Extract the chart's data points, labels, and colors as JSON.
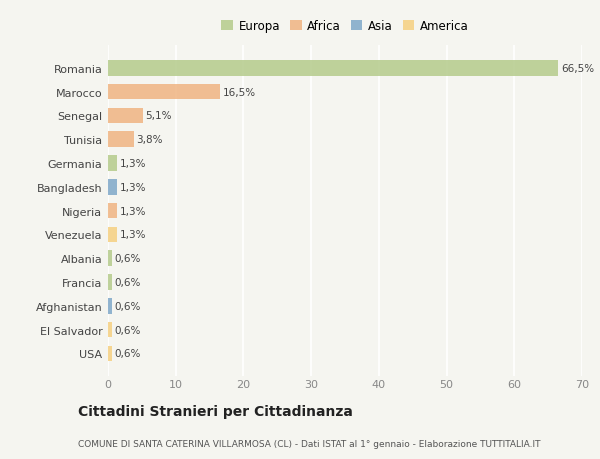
{
  "categories": [
    "Romania",
    "Marocco",
    "Senegal",
    "Tunisia",
    "Germania",
    "Bangladesh",
    "Nigeria",
    "Venezuela",
    "Albania",
    "Francia",
    "Afghanistan",
    "El Salvador",
    "USA"
  ],
  "values": [
    66.5,
    16.5,
    5.1,
    3.8,
    1.3,
    1.3,
    1.3,
    1.3,
    0.6,
    0.6,
    0.6,
    0.6,
    0.6
  ],
  "labels": [
    "66,5%",
    "16,5%",
    "5,1%",
    "3,8%",
    "1,3%",
    "1,3%",
    "1,3%",
    "1,3%",
    "0,6%",
    "0,6%",
    "0,6%",
    "0,6%",
    "0,6%"
  ],
  "colors": [
    "#b5cb8b",
    "#f0b482",
    "#f0b482",
    "#f0b482",
    "#b5cb8b",
    "#7fa8c9",
    "#f0b482",
    "#f5d080",
    "#b5cb8b",
    "#b5cb8b",
    "#7fa8c9",
    "#f5d080",
    "#f5d080"
  ],
  "legend": [
    {
      "label": "Europa",
      "color": "#b5cb8b"
    },
    {
      "label": "Africa",
      "color": "#f0b482"
    },
    {
      "label": "Asia",
      "color": "#7fa8c9"
    },
    {
      "label": "America",
      "color": "#f5d080"
    }
  ],
  "xlim": [
    0,
    70
  ],
  "xticks": [
    0,
    10,
    20,
    30,
    40,
    50,
    60,
    70
  ],
  "title": "Cittadini Stranieri per Cittadinanza",
  "subtitle": "COMUNE DI SANTA CATERINA VILLARMOSA (CL) - Dati ISTAT al 1° gennaio - Elaborazione TUTTITALIA.IT",
  "background_color": "#f5f5f0",
  "grid_color": "#ffffff",
  "bar_height": 0.65
}
